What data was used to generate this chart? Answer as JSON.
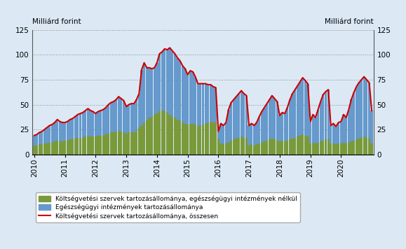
{
  "ylabel_left": "Milliárd forint",
  "ylabel_right": "Milliárd forint",
  "ylim": [
    0,
    125
  ],
  "yticks": [
    0,
    25,
    50,
    75,
    100,
    125
  ],
  "background_color": "#dce9f5",
  "bar_color_green": "#7a9a3a",
  "bar_color_blue": "#6699cc",
  "line_color": "#cc0000",
  "legend_items": [
    "Költségvetési szervek tartozásállománya, egészségügyi intézmények nélkül",
    "Egészségügyi intézmények tartozásállománya",
    "Költségvetési szervek tartozásállománya, összesen"
  ],
  "green_values": [
    9,
    9,
    10,
    10,
    11,
    11,
    12,
    12,
    13,
    14,
    13,
    13,
    14,
    14,
    15,
    15,
    16,
    17,
    17,
    17,
    18,
    19,
    18,
    18,
    18,
    19,
    19,
    19,
    20,
    21,
    22,
    22,
    23,
    24,
    23,
    22,
    21,
    22,
    22,
    22,
    24,
    27,
    29,
    32,
    34,
    37,
    38,
    40,
    41,
    43,
    44,
    44,
    42,
    40,
    38,
    37,
    35,
    34,
    32,
    31,
    30,
    31,
    31,
    30,
    28,
    29,
    30,
    31,
    32,
    33,
    32,
    32,
    16,
    11,
    10,
    11,
    12,
    14,
    15,
    16,
    17,
    18,
    17,
    17,
    9,
    10,
    9,
    10,
    11,
    12,
    13,
    14,
    15,
    16,
    15,
    14,
    13,
    14,
    13,
    14,
    15,
    16,
    17,
    18,
    19,
    20,
    19,
    18,
    11,
    12,
    11,
    12,
    13,
    14,
    15,
    15,
    11,
    11,
    10,
    11,
    11,
    12,
    11,
    12,
    13,
    14,
    15,
    16,
    17,
    18,
    17,
    16,
    11
  ],
  "blue_values": [
    10,
    11,
    12,
    13,
    14,
    16,
    17,
    18,
    19,
    21,
    20,
    19,
    18,
    19,
    20,
    21,
    22,
    23,
    24,
    25,
    26,
    27,
    26,
    25,
    23,
    24,
    25,
    26,
    27,
    29,
    30,
    31,
    32,
    34,
    33,
    32,
    27,
    28,
    29,
    29,
    31,
    34,
    56,
    60,
    53,
    50,
    48,
    47,
    51,
    58,
    59,
    62,
    63,
    67,
    66,
    64,
    62,
    60,
    57,
    55,
    50,
    53,
    52,
    48,
    43,
    42,
    41,
    40,
    38,
    37,
    36,
    35,
    7,
    20,
    19,
    21,
    33,
    38,
    40,
    42,
    44,
    46,
    44,
    42,
    20,
    21,
    20,
    22,
    27,
    31,
    34,
    37,
    40,
    43,
    41,
    39,
    26,
    28,
    28,
    33,
    40,
    45,
    48,
    51,
    54,
    57,
    55,
    53,
    22,
    28,
    26,
    33,
    40,
    46,
    48,
    50,
    18,
    20,
    18,
    21,
    22,
    28,
    26,
    33,
    42,
    48,
    53,
    56,
    58,
    60,
    58,
    56,
    33
  ],
  "red_line": [
    19,
    20,
    22,
    23,
    25,
    27,
    29,
    30,
    32,
    35,
    33,
    32,
    32,
    33,
    35,
    36,
    38,
    40,
    41,
    42,
    44,
    46,
    44,
    43,
    41,
    43,
    44,
    45,
    47,
    50,
    52,
    53,
    55,
    58,
    56,
    54,
    48,
    50,
    51,
    51,
    55,
    61,
    85,
    92,
    87,
    87,
    86,
    87,
    92,
    101,
    103,
    106,
    105,
    107,
    104,
    101,
    97,
    94,
    89,
    86,
    80,
    84,
    83,
    78,
    71,
    71,
    71,
    71,
    70,
    70,
    68,
    67,
    23,
    31,
    29,
    32,
    45,
    52,
    55,
    58,
    61,
    64,
    61,
    59,
    29,
    31,
    29,
    32,
    38,
    43,
    47,
    51,
    55,
    59,
    56,
    53,
    39,
    42,
    41,
    47,
    55,
    61,
    65,
    69,
    73,
    77,
    74,
    71,
    33,
    40,
    37,
    45,
    53,
    60,
    63,
    65,
    29,
    31,
    28,
    32,
    33,
    40,
    37,
    45,
    55,
    62,
    68,
    72,
    75,
    78,
    75,
    72,
    44
  ],
  "n_per_year": 12,
  "n_years": 11,
  "start_year": 2010
}
